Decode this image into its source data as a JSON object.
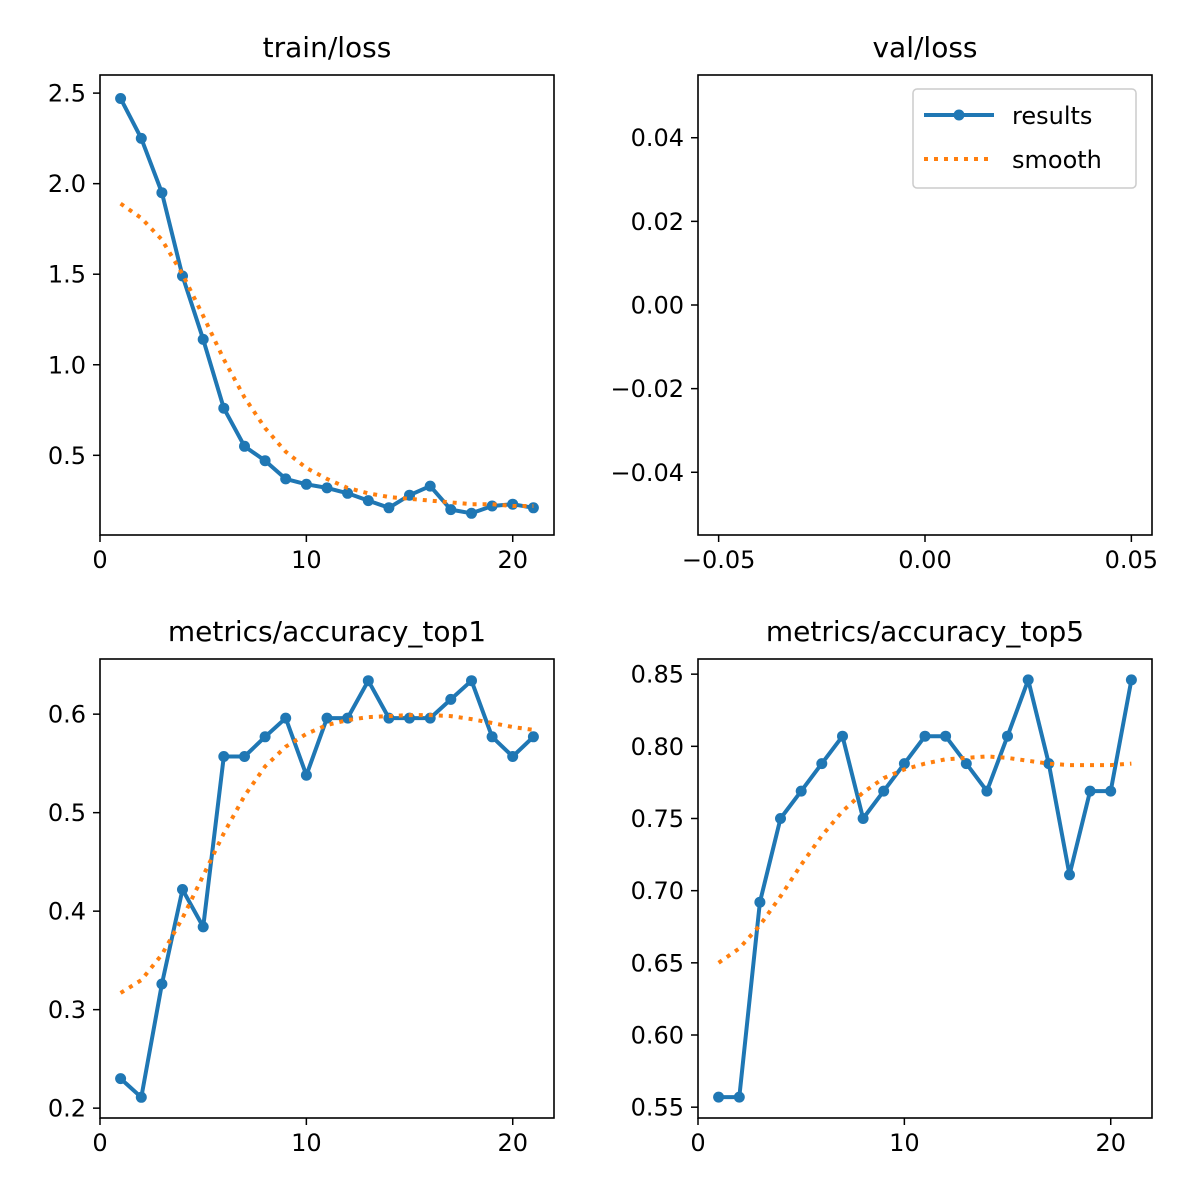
{
  "chart_data": [
    {
      "id": "train-loss",
      "type": "line",
      "title": "train/loss",
      "xlim": [
        0,
        22
      ],
      "ylim": [
        0.06,
        2.6
      ],
      "xticks": [
        0,
        10,
        20
      ],
      "yticks": [
        0.5,
        1.0,
        1.5,
        2.0,
        2.5
      ],
      "x_tick_labels": [
        "0",
        "10",
        "20"
      ],
      "y_tick_labels": [
        "0.5",
        "1.0",
        "1.5",
        "2.0",
        "2.5"
      ],
      "x": [
        1,
        2,
        3,
        4,
        5,
        6,
        7,
        8,
        9,
        10,
        11,
        12,
        13,
        14,
        15,
        16,
        17,
        18,
        19,
        20,
        21
      ],
      "series": [
        {
          "name": "results",
          "style": "line-marker",
          "color": "#1f77b4",
          "values": [
            2.47,
            2.25,
            1.95,
            1.49,
            1.14,
            0.76,
            0.55,
            0.47,
            0.37,
            0.34,
            0.32,
            0.29,
            0.25,
            0.21,
            0.28,
            0.33,
            0.2,
            0.18,
            0.22,
            0.23,
            0.21
          ]
        },
        {
          "name": "smooth",
          "style": "dotted",
          "color": "#ff7f0e",
          "values": [
            1.89,
            1.81,
            1.69,
            1.5,
            1.27,
            1.03,
            0.82,
            0.65,
            0.52,
            0.43,
            0.37,
            0.32,
            0.29,
            0.27,
            0.26,
            0.25,
            0.24,
            0.23,
            0.23,
            0.22,
            0.22
          ]
        }
      ]
    },
    {
      "id": "val-loss",
      "type": "line",
      "title": "val/loss",
      "xlim": [
        -0.055,
        0.055
      ],
      "ylim": [
        -0.055,
        0.055
      ],
      "xticks": [
        -0.05,
        0,
        0.05
      ],
      "yticks": [
        -0.04,
        -0.02,
        0,
        0.02,
        0.04
      ],
      "x_tick_labels": [
        "−0.05",
        "0.00",
        "0.05"
      ],
      "y_tick_labels": [
        "−0.04",
        "−0.02",
        "0.00",
        "0.02",
        "0.04"
      ],
      "x": [],
      "series": [
        {
          "name": "results",
          "style": "line-marker",
          "color": "#1f77b4",
          "values": []
        },
        {
          "name": "smooth",
          "style": "dotted",
          "color": "#ff7f0e",
          "values": []
        }
      ],
      "legend": {
        "placement": "top-right",
        "entries": [
          "results",
          "smooth"
        ]
      }
    },
    {
      "id": "accuracy-top1",
      "type": "line",
      "title": "metrics/accuracy_top1",
      "xlim": [
        0,
        22
      ],
      "ylim": [
        0.19,
        0.656
      ],
      "xticks": [
        0,
        10,
        20
      ],
      "yticks": [
        0.2,
        0.3,
        0.4,
        0.5,
        0.6
      ],
      "x_tick_labels": [
        "0",
        "10",
        "20"
      ],
      "y_tick_labels": [
        "0.2",
        "0.3",
        "0.4",
        "0.5",
        "0.6"
      ],
      "x": [
        1,
        2,
        3,
        4,
        5,
        6,
        7,
        8,
        9,
        10,
        11,
        12,
        13,
        14,
        15,
        16,
        17,
        18,
        19,
        20,
        21
      ],
      "series": [
        {
          "name": "results",
          "style": "line-marker",
          "color": "#1f77b4",
          "values": [
            0.23,
            0.211,
            0.326,
            0.422,
            0.384,
            0.557,
            0.557,
            0.577,
            0.596,
            0.538,
            0.596,
            0.596,
            0.634,
            0.596,
            0.596,
            0.596,
            0.615,
            0.634,
            0.577,
            0.557,
            0.577
          ]
        },
        {
          "name": "smooth",
          "style": "dotted",
          "color": "#ff7f0e",
          "values": [
            0.317,
            0.33,
            0.356,
            0.393,
            0.436,
            0.479,
            0.517,
            0.547,
            0.567,
            0.58,
            0.589,
            0.594,
            0.597,
            0.598,
            0.599,
            0.599,
            0.598,
            0.595,
            0.591,
            0.587,
            0.584
          ]
        }
      ]
    },
    {
      "id": "accuracy-top5",
      "type": "line",
      "title": "metrics/accuracy_top5",
      "xlim": [
        0,
        22
      ],
      "ylim": [
        0.5425,
        0.8605
      ],
      "xticks": [
        0,
        10,
        20
      ],
      "yticks": [
        0.55,
        0.6,
        0.65,
        0.7,
        0.75,
        0.8,
        0.85
      ],
      "x_tick_labels": [
        "0",
        "10",
        "20"
      ],
      "y_tick_labels": [
        "0.55",
        "0.60",
        "0.65",
        "0.70",
        "0.75",
        "0.80",
        "0.85"
      ],
      "x": [
        1,
        2,
        3,
        4,
        5,
        6,
        7,
        8,
        9,
        10,
        11,
        12,
        13,
        14,
        15,
        16,
        17,
        18,
        19,
        20,
        21
      ],
      "series": [
        {
          "name": "results",
          "style": "line-marker",
          "color": "#1f77b4",
          "values": [
            0.557,
            0.557,
            0.692,
            0.75,
            0.769,
            0.788,
            0.807,
            0.75,
            0.769,
            0.788,
            0.807,
            0.807,
            0.788,
            0.769,
            0.807,
            0.846,
            0.788,
            0.711,
            0.769,
            0.769,
            0.846
          ]
        },
        {
          "name": "smooth",
          "style": "dotted",
          "color": "#ff7f0e",
          "values": [
            0.65,
            0.66,
            0.676,
            0.696,
            0.718,
            0.738,
            0.755,
            0.768,
            0.778,
            0.784,
            0.788,
            0.791,
            0.792,
            0.793,
            0.792,
            0.79,
            0.788,
            0.787,
            0.787,
            0.787,
            0.788
          ]
        }
      ]
    }
  ]
}
